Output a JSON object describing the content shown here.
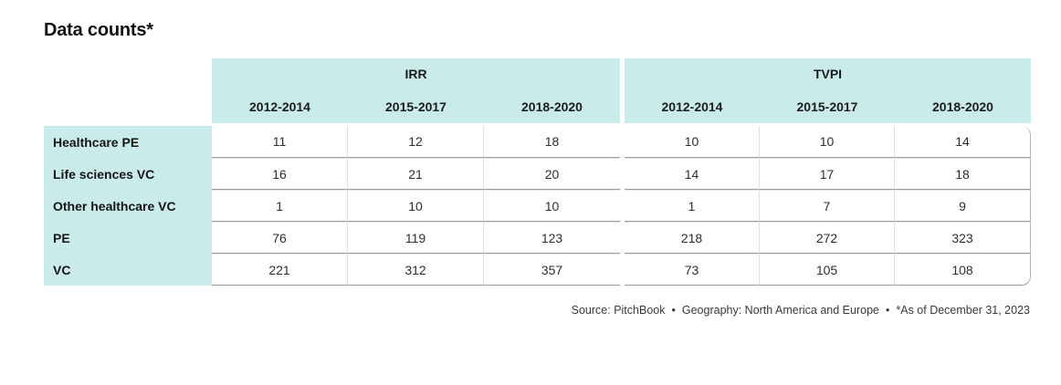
{
  "title": "Data counts*",
  "header": {
    "groups": [
      {
        "label": "IRR",
        "years": [
          "2012-2014",
          "2015-2017",
          "2018-2020"
        ]
      },
      {
        "label": "TVPI",
        "years": [
          "2012-2014",
          "2015-2017",
          "2018-2020"
        ]
      }
    ]
  },
  "rows": [
    {
      "label": "Healthcare PE",
      "irr": [
        11,
        12,
        18
      ],
      "tvpi": [
        10,
        10,
        14
      ]
    },
    {
      "label": "Life sciences VC",
      "irr": [
        16,
        21,
        20
      ],
      "tvpi": [
        14,
        17,
        18
      ]
    },
    {
      "label": "Other healthcare VC",
      "irr": [
        1,
        10,
        10
      ],
      "tvpi": [
        1,
        7,
        9
      ]
    },
    {
      "label": "PE",
      "irr": [
        76,
        119,
        123
      ],
      "tvpi": [
        218,
        272,
        323
      ]
    },
    {
      "label": "VC",
      "irr": [
        221,
        312,
        357
      ],
      "tvpi": [
        73,
        105,
        108
      ]
    }
  ],
  "footer": {
    "parts": [
      "Source: PitchBook",
      "Geography: North America and Europe",
      "*As of December 31, 2023"
    ],
    "separator": "•"
  },
  "colors": {
    "header_bg": "#c9ebe9",
    "row_label_bg": "#c9ebe9",
    "border_dark": "#9c9c9c",
    "border_light": "#e0e0e0"
  },
  "chart_data": {
    "type": "table",
    "title": "Data counts*",
    "column_groups": [
      "IRR",
      "TVPI"
    ],
    "columns": [
      "IRR 2012-2014",
      "IRR 2015-2017",
      "IRR 2018-2020",
      "TVPI 2012-2014",
      "TVPI 2015-2017",
      "TVPI 2018-2020"
    ],
    "rows": [
      {
        "label": "Healthcare PE",
        "values": [
          11,
          12,
          18,
          10,
          10,
          14
        ]
      },
      {
        "label": "Life sciences VC",
        "values": [
          16,
          21,
          20,
          14,
          17,
          18
        ]
      },
      {
        "label": "Other healthcare VC",
        "values": [
          1,
          10,
          10,
          1,
          7,
          9
        ]
      },
      {
        "label": "PE",
        "values": [
          76,
          119,
          123,
          218,
          272,
          323
        ]
      },
      {
        "label": "VC",
        "values": [
          221,
          312,
          357,
          73,
          105,
          108
        ]
      }
    ],
    "source_note": "Source: PitchBook • Geography: North America and Europe • *As of December 31, 2023"
  }
}
